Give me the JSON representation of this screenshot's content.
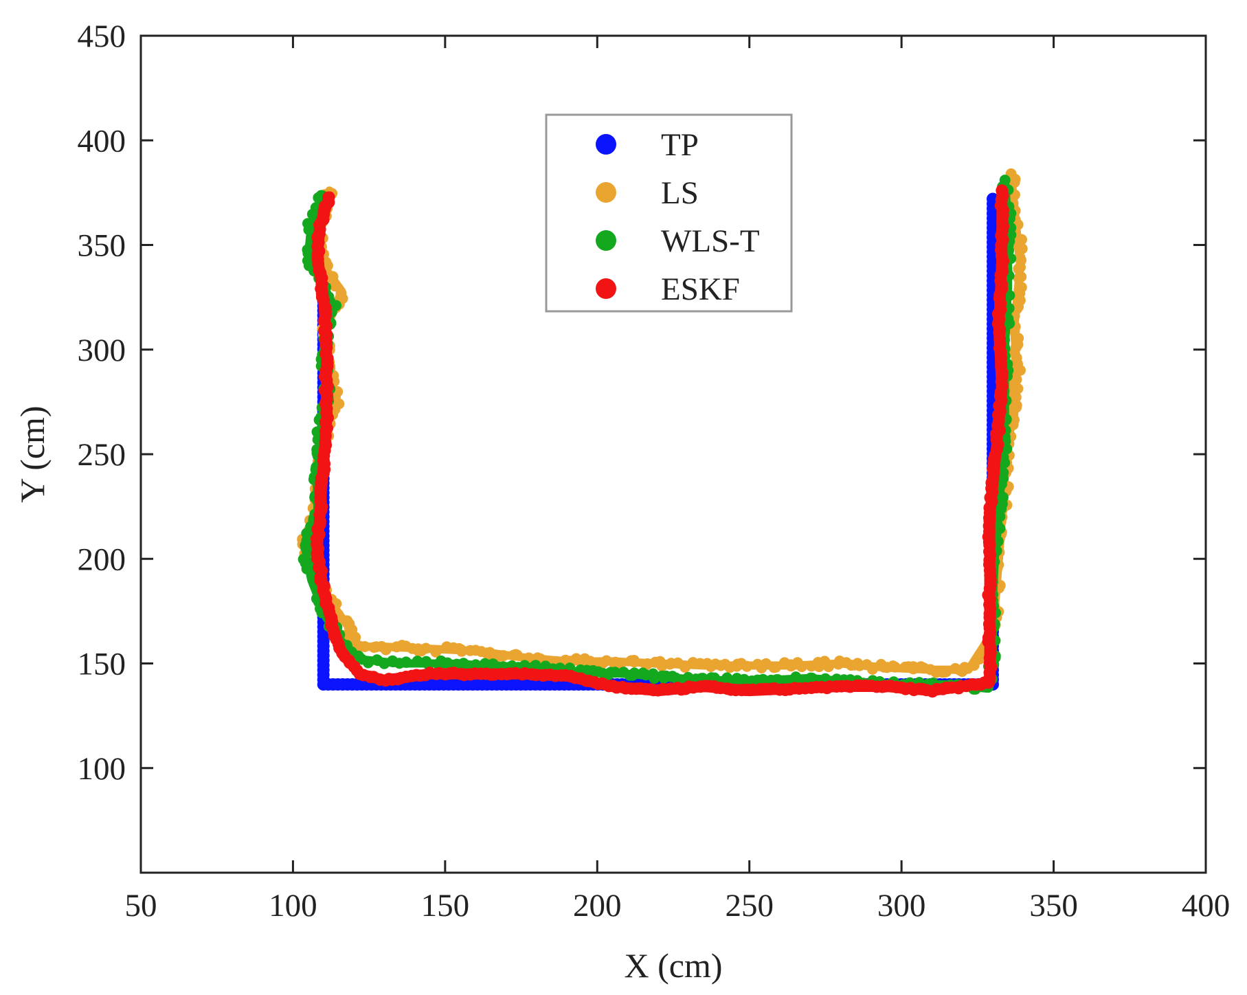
{
  "chart_data": {
    "type": "scatter",
    "title": "",
    "xlabel": "X (cm)",
    "ylabel": "Y (cm)",
    "xlim": [
      50,
      400
    ],
    "ylim": [
      50,
      450
    ],
    "xticks": [
      50,
      100,
      150,
      200,
      250,
      300,
      350,
      400
    ],
    "yticks": [
      100,
      150,
      200,
      250,
      300,
      350,
      400,
      450
    ],
    "grid": false,
    "legend_position": "top-center",
    "series": [
      {
        "name": "TP",
        "color": "#0a14ff",
        "points": [
          [
            110,
            330
          ],
          [
            110,
            140
          ],
          [
            330,
            140
          ],
          [
            330,
            372
          ]
        ]
      },
      {
        "name": "LS",
        "color": "#eaa530",
        "points": [
          [
            112,
            376
          ],
          [
            109,
            358
          ],
          [
            110,
            340
          ],
          [
            116,
            328
          ],
          [
            111,
            310
          ],
          [
            112,
            290
          ],
          [
            114,
            275
          ],
          [
            110,
            258
          ],
          [
            109,
            240
          ],
          [
            108,
            225
          ],
          [
            104,
            208
          ],
          [
            108,
            190
          ],
          [
            113,
            178
          ],
          [
            118,
            168
          ],
          [
            120,
            158
          ],
          [
            130,
            158
          ],
          [
            145,
            157
          ],
          [
            160,
            156
          ],
          [
            175,
            153
          ],
          [
            190,
            151
          ],
          [
            205,
            151
          ],
          [
            220,
            150
          ],
          [
            235,
            149
          ],
          [
            250,
            149
          ],
          [
            265,
            149
          ],
          [
            280,
            150
          ],
          [
            295,
            148
          ],
          [
            310,
            147
          ],
          [
            322,
            147
          ],
          [
            330,
            165
          ],
          [
            332,
            200
          ],
          [
            334,
            240
          ],
          [
            336,
            265
          ],
          [
            338,
            290
          ],
          [
            337,
            310
          ],
          [
            339,
            340
          ],
          [
            336,
            384
          ]
        ]
      },
      {
        "name": "WLS-T",
        "color": "#14a81e",
        "points": [
          [
            110,
            374
          ],
          [
            106,
            360
          ],
          [
            105,
            345
          ],
          [
            113,
            322
          ],
          [
            110,
            300
          ],
          [
            111,
            280
          ],
          [
            109,
            260
          ],
          [
            108,
            240
          ],
          [
            108,
            222
          ],
          [
            104,
            205
          ],
          [
            106,
            190
          ],
          [
            110,
            175
          ],
          [
            115,
            162
          ],
          [
            122,
            152
          ],
          [
            135,
            150
          ],
          [
            150,
            150
          ],
          [
            165,
            149
          ],
          [
            180,
            148
          ],
          [
            195,
            146
          ],
          [
            210,
            145
          ],
          [
            225,
            143
          ],
          [
            240,
            142
          ],
          [
            255,
            142
          ],
          [
            270,
            143
          ],
          [
            285,
            141
          ],
          [
            300,
            140
          ],
          [
            315,
            140
          ],
          [
            328,
            138
          ],
          [
            330,
            150
          ],
          [
            330,
            180
          ],
          [
            331,
            210
          ],
          [
            333,
            240
          ],
          [
            334,
            270
          ],
          [
            334,
            300
          ],
          [
            335,
            330
          ],
          [
            335,
            360
          ],
          [
            334,
            381
          ]
        ]
      },
      {
        "name": "ESKF",
        "color": "#f21414",
        "points": [
          [
            112,
            373
          ],
          [
            109,
            360
          ],
          [
            108,
            345
          ],
          [
            110,
            325
          ],
          [
            111,
            305
          ],
          [
            111,
            285
          ],
          [
            111,
            265
          ],
          [
            110,
            245
          ],
          [
            109,
            225
          ],
          [
            108,
            205
          ],
          [
            110,
            185
          ],
          [
            113,
            168
          ],
          [
            116,
            155
          ],
          [
            122,
            145
          ],
          [
            130,
            142
          ],
          [
            145,
            145
          ],
          [
            160,
            145
          ],
          [
            175,
            145
          ],
          [
            190,
            144
          ],
          [
            205,
            139
          ],
          [
            220,
            137
          ],
          [
            235,
            139
          ],
          [
            250,
            137
          ],
          [
            265,
            138
          ],
          [
            280,
            139
          ],
          [
            295,
            139
          ],
          [
            310,
            137
          ],
          [
            320,
            139
          ],
          [
            329,
            141
          ],
          [
            329,
            160
          ],
          [
            329,
            190
          ],
          [
            329,
            220
          ],
          [
            331,
            250
          ],
          [
            333,
            280
          ],
          [
            332,
            310
          ],
          [
            333,
            345
          ],
          [
            333,
            376
          ]
        ]
      }
    ]
  }
}
